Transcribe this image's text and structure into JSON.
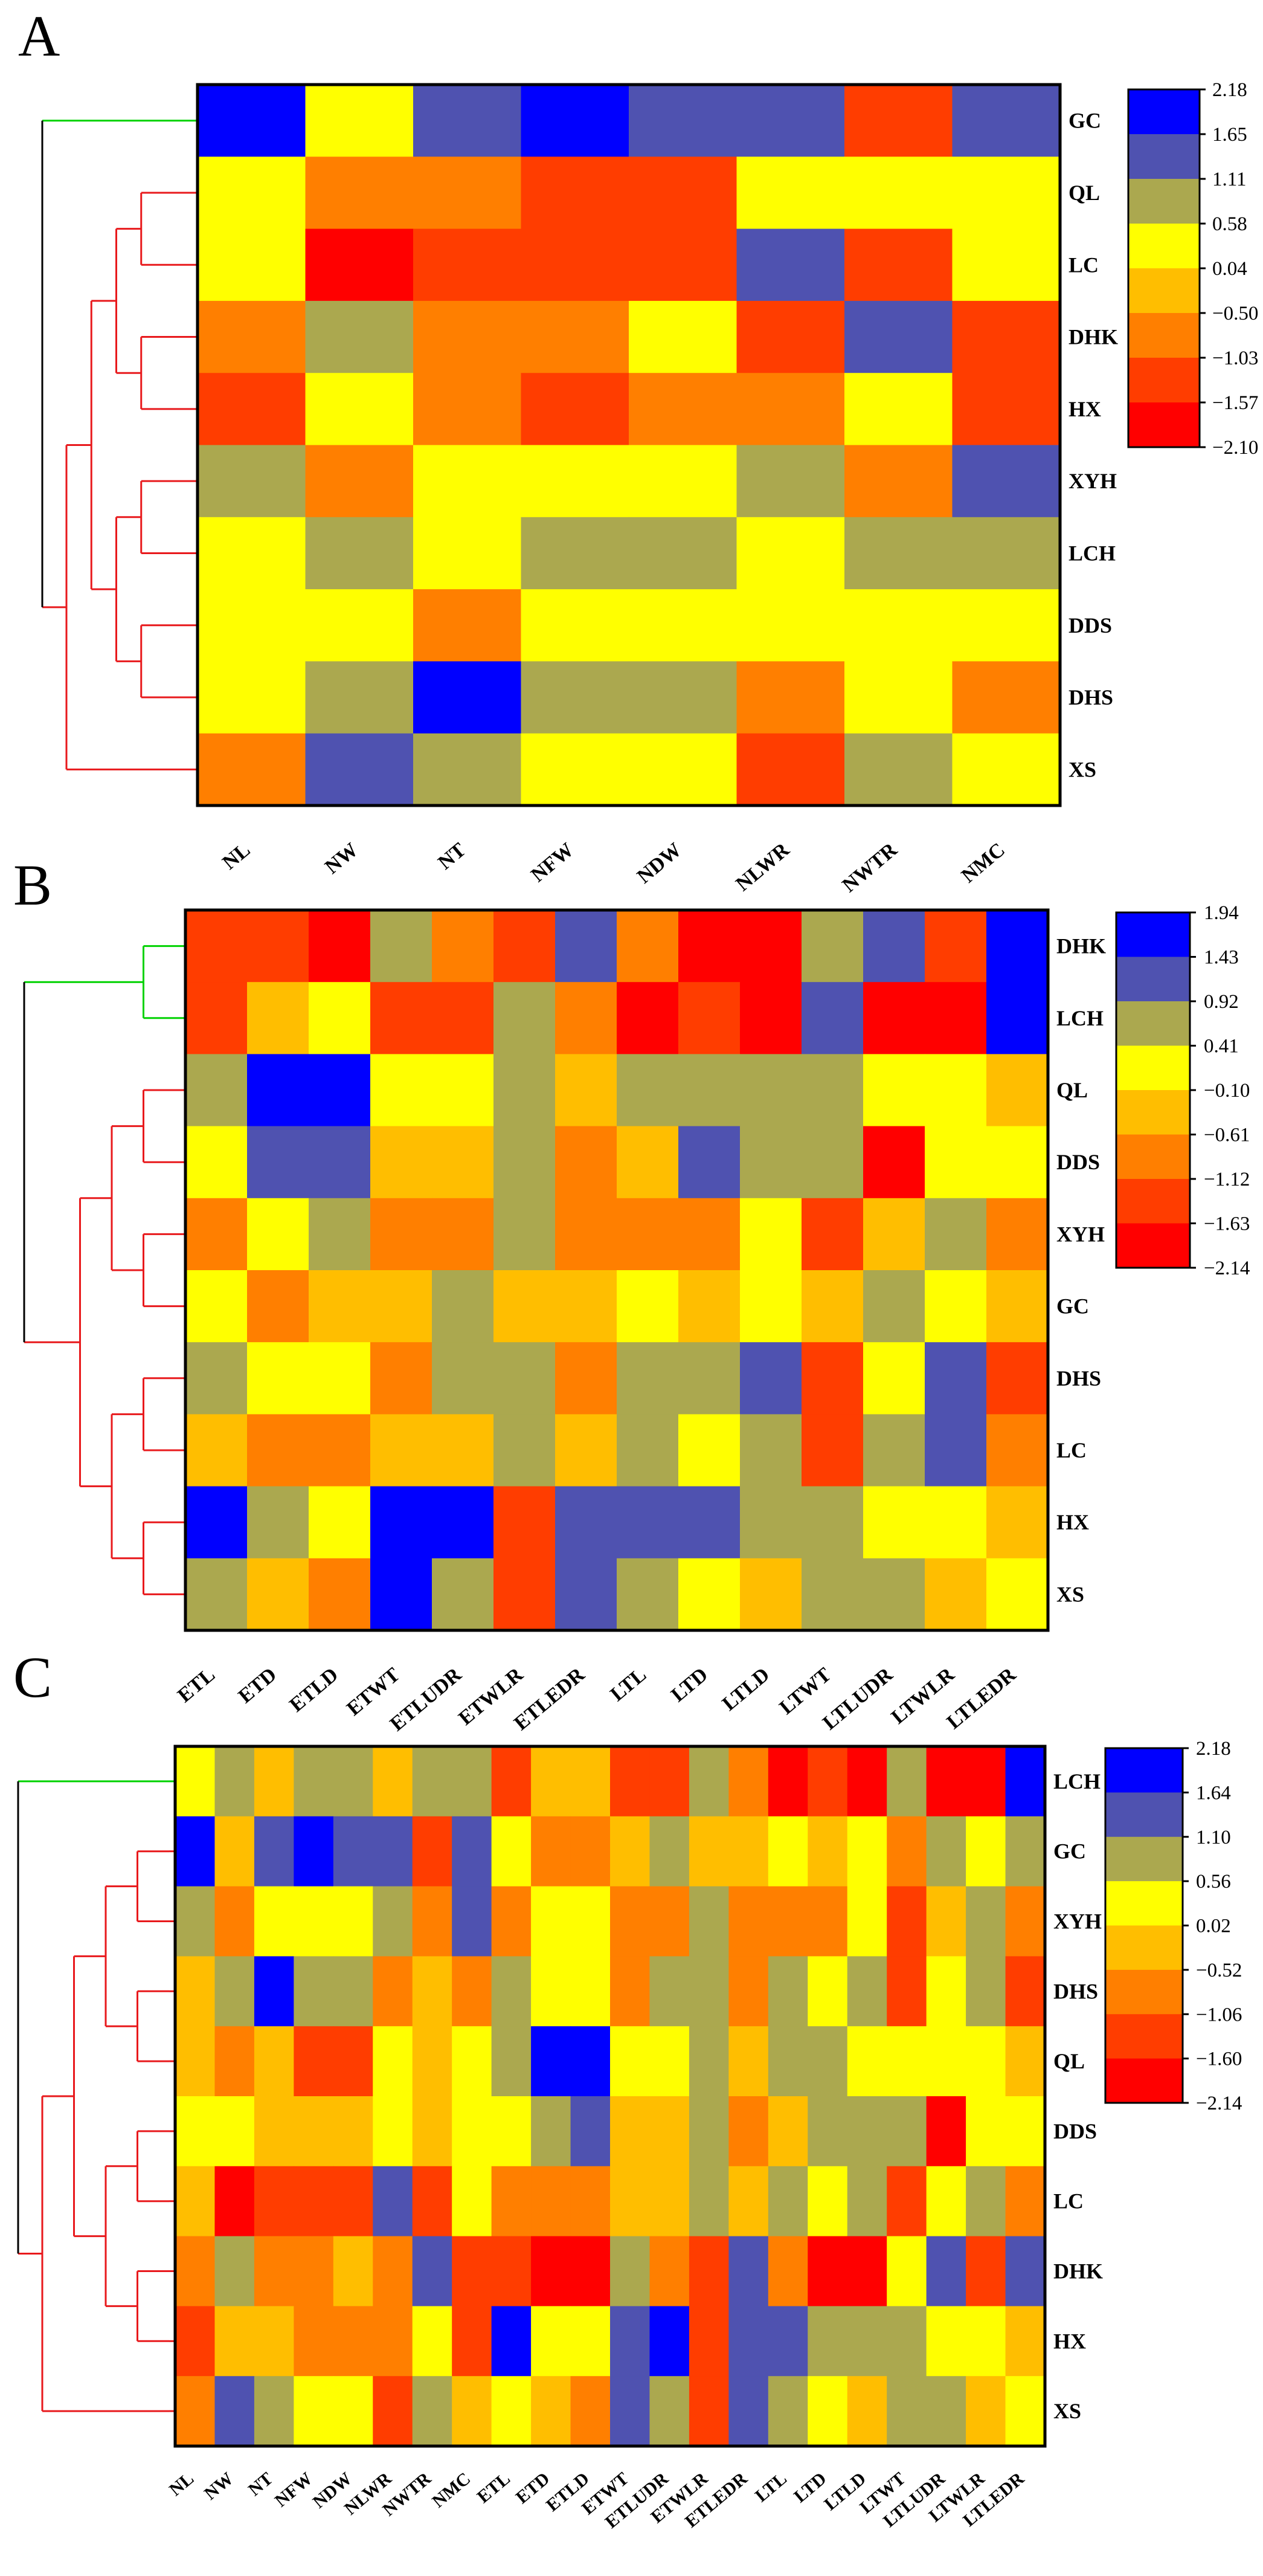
{
  "colors": {
    "scale": [
      "#FF0000",
      "#FF3D00",
      "#FF7F00",
      "#FFBE00",
      "#FFFF00",
      "#ABA84F",
      "#4F52B0",
      "#0000FF"
    ],
    "tree_red": "#E8191C",
    "tree_green": "#00D200",
    "tree_black": "#000000"
  },
  "chart_data": [
    {
      "type": "heatmap",
      "panel": "A",
      "rows": [
        "GC",
        "QL",
        "LC",
        "DHK",
        "HX",
        "XYH",
        "LCH",
        "DDS",
        "DHS",
        "XS"
      ],
      "columns": [
        "NL",
        "NW",
        "NT",
        "NFW",
        "NDW",
        "NLWR",
        "NWTR",
        "NMC"
      ],
      "values": [
        [
          2.18,
          0.04,
          1.38,
          2.18,
          1.38,
          1.38,
          -1.3,
          1.38
        ],
        [
          0.04,
          -0.77,
          -0.77,
          -1.3,
          -1.3,
          0.31,
          0.04,
          0.31
        ],
        [
          0.04,
          -1.84,
          -1.3,
          -1.3,
          -1.3,
          1.38,
          -1.3,
          0.31
        ],
        [
          -0.77,
          0.85,
          -0.77,
          -0.77,
          0.04,
          -1.3,
          1.38,
          -1.3
        ],
        [
          -1.3,
          0.04,
          -0.77,
          -1.3,
          -0.77,
          -0.77,
          0.31,
          -1.3
        ],
        [
          0.85,
          -0.77,
          0.31,
          0.31,
          0.31,
          0.85,
          -0.77,
          1.38
        ],
        [
          0.31,
          0.85,
          0.04,
          0.85,
          0.85,
          0.04,
          0.85,
          0.85
        ],
        [
          0.31,
          0.31,
          -0.77,
          0.04,
          0.04,
          0.04,
          0.31,
          0.04
        ],
        [
          0.04,
          0.85,
          2.18,
          0.85,
          0.85,
          -0.77,
          0.04,
          -0.77
        ],
        [
          -0.77,
          1.38,
          0.85,
          0.31,
          0.31,
          -1.3,
          0.85,
          0.04
        ]
      ],
      "colorbar": {
        "ticks": [
          "2.18",
          "1.65",
          "1.11",
          "0.58",
          "0.04",
          "−0.50",
          "−1.03",
          "−1.57",
          "−2.10"
        ],
        "range": [
          -2.1,
          2.18
        ]
      },
      "dendrogram": {
        "green_group": [
          "GC"
        ],
        "red_group": [
          "QL",
          "LC",
          "DHK",
          "HX",
          "XYH",
          "LCH",
          "DDS",
          "DHS",
          "XS"
        ]
      }
    },
    {
      "type": "heatmap",
      "panel": "B",
      "rows": [
        "DHK",
        "LCH",
        "QL",
        "DDS",
        "XYH",
        "GC",
        "DHS",
        "LC",
        "HX",
        "XS"
      ],
      "columns": [
        "ETL",
        "ETD",
        "ETLD",
        "ETWT",
        "ETLUDR",
        "ETWLR",
        "ETLEDR",
        "LTL",
        "LTD",
        "LTLD",
        "LTWT",
        "LTLUDR",
        "LTWLR",
        "LTLEDR"
      ],
      "values": [
        [
          -1.38,
          -1.38,
          -1.88,
          0.66,
          -0.86,
          -1.38,
          1.18,
          -0.86,
          -1.88,
          -1.88,
          0.66,
          1.18,
          -1.38,
          1.94
        ],
        [
          -1.38,
          -0.35,
          0.15,
          -1.38,
          -1.38,
          0.66,
          -0.86,
          -1.88,
          -1.38,
          -1.88,
          1.18,
          -1.88,
          -1.88,
          1.94
        ],
        [
          0.66,
          1.94,
          1.94,
          0.15,
          0.15,
          0.66,
          -0.35,
          0.66,
          0.66,
          0.66,
          0.66,
          0.15,
          0.15,
          -0.35
        ],
        [
          0.15,
          1.18,
          1.18,
          -0.35,
          -0.35,
          0.66,
          -0.86,
          -0.35,
          1.18,
          0.66,
          0.66,
          -1.88,
          0.15,
          0.15
        ],
        [
          -0.86,
          0.15,
          0.66,
          -0.86,
          -0.86,
          0.66,
          -0.86,
          -0.86,
          -0.86,
          0.15,
          -1.38,
          -0.35,
          0.66,
          -0.86
        ],
        [
          0.15,
          -0.86,
          -0.35,
          -0.35,
          0.66,
          -0.35,
          -0.35,
          0.15,
          -0.35,
          0.15,
          -0.35,
          0.66,
          0.15,
          -0.35
        ],
        [
          0.66,
          0.15,
          0.15,
          -0.86,
          0.66,
          0.66,
          -0.86,
          0.66,
          0.66,
          1.18,
          -1.38,
          0.15,
          1.18,
          -1.38
        ],
        [
          -0.35,
          -0.86,
          -0.86,
          -0.35,
          -0.35,
          0.66,
          -0.35,
          0.66,
          0.15,
          0.66,
          -1.38,
          0.66,
          1.18,
          -0.86
        ],
        [
          1.94,
          0.66,
          0.15,
          1.94,
          1.94,
          -1.38,
          1.18,
          1.18,
          1.18,
          0.66,
          0.66,
          0.15,
          0.15,
          -0.35
        ],
        [
          0.66,
          -0.35,
          -0.86,
          1.94,
          0.66,
          -1.38,
          1.18,
          0.66,
          0.15,
          -0.35,
          0.66,
          0.66,
          -0.35,
          0.15
        ]
      ],
      "colorbar": {
        "ticks": [
          "1.94",
          "1.43",
          "0.92",
          "0.41",
          "−0.10",
          "−0.61",
          "−1.12",
          "−1.63",
          "−2.14"
        ],
        "range": [
          -2.14,
          1.94
        ]
      },
      "dendrogram": {
        "green_group": [
          "DHK",
          "LCH"
        ],
        "red_group": [
          "QL",
          "DDS",
          "XYH",
          "GC",
          "DHS",
          "LC",
          "HX",
          "XS"
        ]
      }
    },
    {
      "type": "heatmap",
      "panel": "C",
      "rows": [
        "LCH",
        "GC",
        "XYH",
        "DHS",
        "QL",
        "DDS",
        "LC",
        "DHK",
        "HX",
        "XS"
      ],
      "columns": [
        "NL",
        "NW",
        "NT",
        "NFW",
        "NDW",
        "NLWR",
        "NWTR",
        "NMC",
        "ETL",
        "ETD",
        "ETLD",
        "ETWT",
        "ETLUDR",
        "ETWLR",
        "ETLEDR",
        "LTL",
        "LTD",
        "LTLD",
        "LTWT",
        "LTLUDR",
        "LTWLR",
        "LTLEDR"
      ],
      "values": [
        [
          0.29,
          0.83,
          -0.25,
          0.83,
          0.83,
          -0.25,
          0.83,
          0.83,
          -1.33,
          -0.25,
          -0.25,
          -1.33,
          -1.33,
          0.83,
          -0.79,
          -1.87,
          -1.33,
          -1.87,
          0.83,
          -1.87,
          -1.87,
          2.18
        ],
        [
          2.18,
          -0.25,
          1.37,
          2.18,
          1.37,
          1.37,
          -1.33,
          1.37,
          0.29,
          -0.79,
          -0.79,
          -0.25,
          0.83,
          -0.25,
          -0.25,
          0.29,
          -0.25,
          0.29,
          -0.79,
          0.83,
          0.29,
          0.83
        ],
        [
          0.83,
          -0.79,
          0.29,
          0.29,
          0.29,
          0.83,
          -0.79,
          1.37,
          -0.79,
          0.29,
          0.29,
          -0.79,
          -0.79,
          0.83,
          -0.79,
          -0.79,
          -0.79,
          0.29,
          -1.33,
          -0.25,
          0.83,
          -0.79
        ],
        [
          -0.25,
          0.83,
          2.18,
          0.83,
          0.83,
          -0.79,
          -0.25,
          -0.79,
          0.83,
          0.29,
          0.29,
          -0.79,
          0.83,
          0.83,
          -0.79,
          0.83,
          0.29,
          0.83,
          -1.33,
          0.29,
          0.83,
          -1.33
        ],
        [
          -0.25,
          -0.79,
          -0.25,
          -1.33,
          -1.33,
          0.29,
          -0.25,
          0.29,
          0.83,
          2.18,
          2.18,
          0.29,
          0.29,
          0.83,
          -0.25,
          0.83,
          0.83,
          0.29,
          0.29,
          0.29,
          0.29,
          -0.25
        ],
        [
          0.29,
          0.29,
          -0.25,
          -0.25,
          -0.25,
          0.29,
          -0.25,
          0.29,
          0.29,
          0.83,
          1.37,
          -0.25,
          -0.25,
          0.83,
          -0.79,
          -0.25,
          0.83,
          0.83,
          0.83,
          -1.87,
          0.29,
          0.29
        ],
        [
          -0.25,
          -1.87,
          -1.33,
          -1.33,
          -1.33,
          1.37,
          -1.33,
          0.29,
          -0.79,
          -0.79,
          -0.79,
          -0.25,
          -0.25,
          0.83,
          -0.25,
          0.83,
          0.29,
          0.83,
          -1.33,
          0.29,
          0.83,
          -0.79
        ],
        [
          -0.79,
          0.83,
          -0.79,
          -0.79,
          -0.25,
          -0.79,
          1.37,
          -1.33,
          -1.33,
          -1.87,
          -1.87,
          0.83,
          -0.79,
          -1.33,
          1.37,
          -0.79,
          -1.87,
          -1.87,
          0.29,
          1.37,
          -1.33,
          1.37
        ],
        [
          -1.33,
          -0.25,
          -0.25,
          -0.79,
          -0.79,
          -0.79,
          0.29,
          -1.33,
          2.18,
          0.29,
          0.29,
          1.37,
          2.18,
          -1.33,
          1.37,
          1.37,
          0.83,
          0.83,
          0.83,
          0.29,
          0.29,
          -0.25
        ],
        [
          -0.79,
          1.37,
          0.83,
          0.29,
          0.29,
          -1.33,
          0.83,
          -0.25,
          0.29,
          -0.25,
          -0.79,
          1.37,
          0.83,
          -1.33,
          1.37,
          0.83,
          0.29,
          -0.25,
          0.83,
          0.83,
          -0.25,
          0.29
        ]
      ],
      "colorbar": {
        "ticks": [
          "2.18",
          "1.64",
          "1.10",
          "0.56",
          "0.02",
          "−0.52",
          "−1.06",
          "−1.60",
          "−2.14"
        ],
        "range": [
          -2.14,
          2.18
        ]
      },
      "dendrogram": {
        "green_group": [
          "LCH"
        ],
        "red_group": [
          "GC",
          "XYH",
          "DHS",
          "QL",
          "DDS",
          "LC",
          "DHK",
          "HX",
          "XS"
        ]
      }
    }
  ]
}
